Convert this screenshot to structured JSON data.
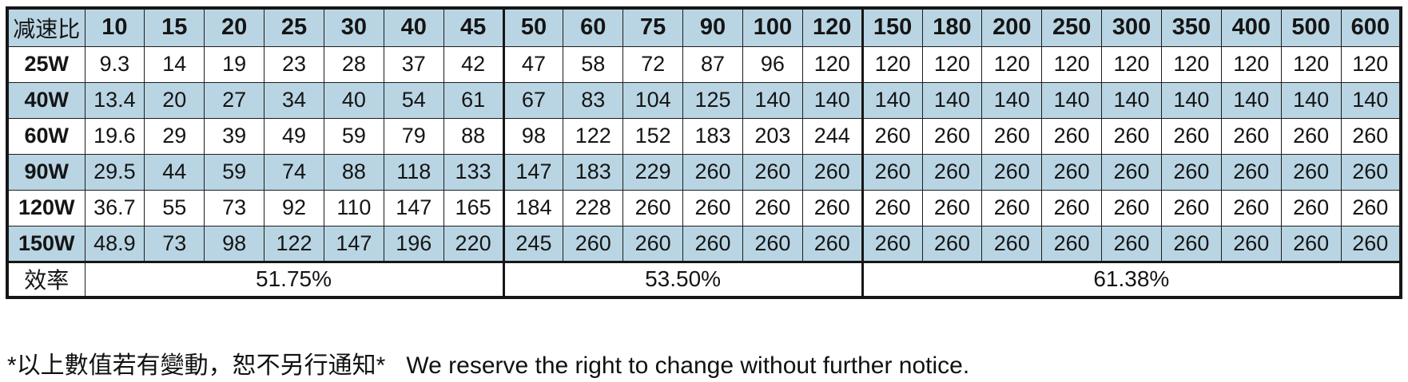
{
  "table": {
    "corner_label": "减速比",
    "columns": [
      "10",
      "15",
      "20",
      "25",
      "30",
      "40",
      "45",
      "50",
      "60",
      "75",
      "90",
      "100",
      "120",
      "150",
      "180",
      "200",
      "250",
      "300",
      "350",
      "400",
      "500",
      "600"
    ],
    "group_spans": [
      7,
      6,
      9
    ],
    "rows": [
      {
        "label": "25W",
        "values": [
          "9.3",
          "14",
          "19",
          "23",
          "28",
          "37",
          "42",
          "47",
          "58",
          "72",
          "87",
          "96",
          "120",
          "120",
          "120",
          "120",
          "120",
          "120",
          "120",
          "120",
          "120",
          "120"
        ]
      },
      {
        "label": "40W",
        "values": [
          "13.4",
          "20",
          "27",
          "34",
          "40",
          "54",
          "61",
          "67",
          "83",
          "104",
          "125",
          "140",
          "140",
          "140",
          "140",
          "140",
          "140",
          "140",
          "140",
          "140",
          "140",
          "140"
        ]
      },
      {
        "label": "60W",
        "values": [
          "19.6",
          "29",
          "39",
          "49",
          "59",
          "79",
          "88",
          "98",
          "122",
          "152",
          "183",
          "203",
          "244",
          "260",
          "260",
          "260",
          "260",
          "260",
          "260",
          "260",
          "260",
          "260"
        ]
      },
      {
        "label": "90W",
        "values": [
          "29.5",
          "44",
          "59",
          "74",
          "88",
          "118",
          "133",
          "147",
          "183",
          "229",
          "260",
          "260",
          "260",
          "260",
          "260",
          "260",
          "260",
          "260",
          "260",
          "260",
          "260",
          "260"
        ]
      },
      {
        "label": "120W",
        "values": [
          "36.7",
          "55",
          "73",
          "92",
          "110",
          "147",
          "165",
          "184",
          "228",
          "260",
          "260",
          "260",
          "260",
          "260",
          "260",
          "260",
          "260",
          "260",
          "260",
          "260",
          "260",
          "260"
        ]
      },
      {
        "label": "150W",
        "values": [
          "48.9",
          "73",
          "98",
          "122",
          "147",
          "196",
          "220",
          "245",
          "260",
          "260",
          "260",
          "260",
          "260",
          "260",
          "260",
          "260",
          "260",
          "260",
          "260",
          "260",
          "260",
          "260"
        ]
      }
    ],
    "efficiency": {
      "label": "效率",
      "groups": [
        {
          "span": 7,
          "value": "51.75%"
        },
        {
          "span": 6,
          "value": "53.50%"
        },
        {
          "span": 9,
          "value": "61.38%"
        }
      ]
    }
  },
  "footer": {
    "note_zh": "*以上數值若有變動，恕不另行通知*",
    "note_en": "We reserve the right to change without further notice."
  },
  "colors": {
    "shaded_row": "#b9d5e3",
    "border": "#161616",
    "text": "#151515"
  }
}
